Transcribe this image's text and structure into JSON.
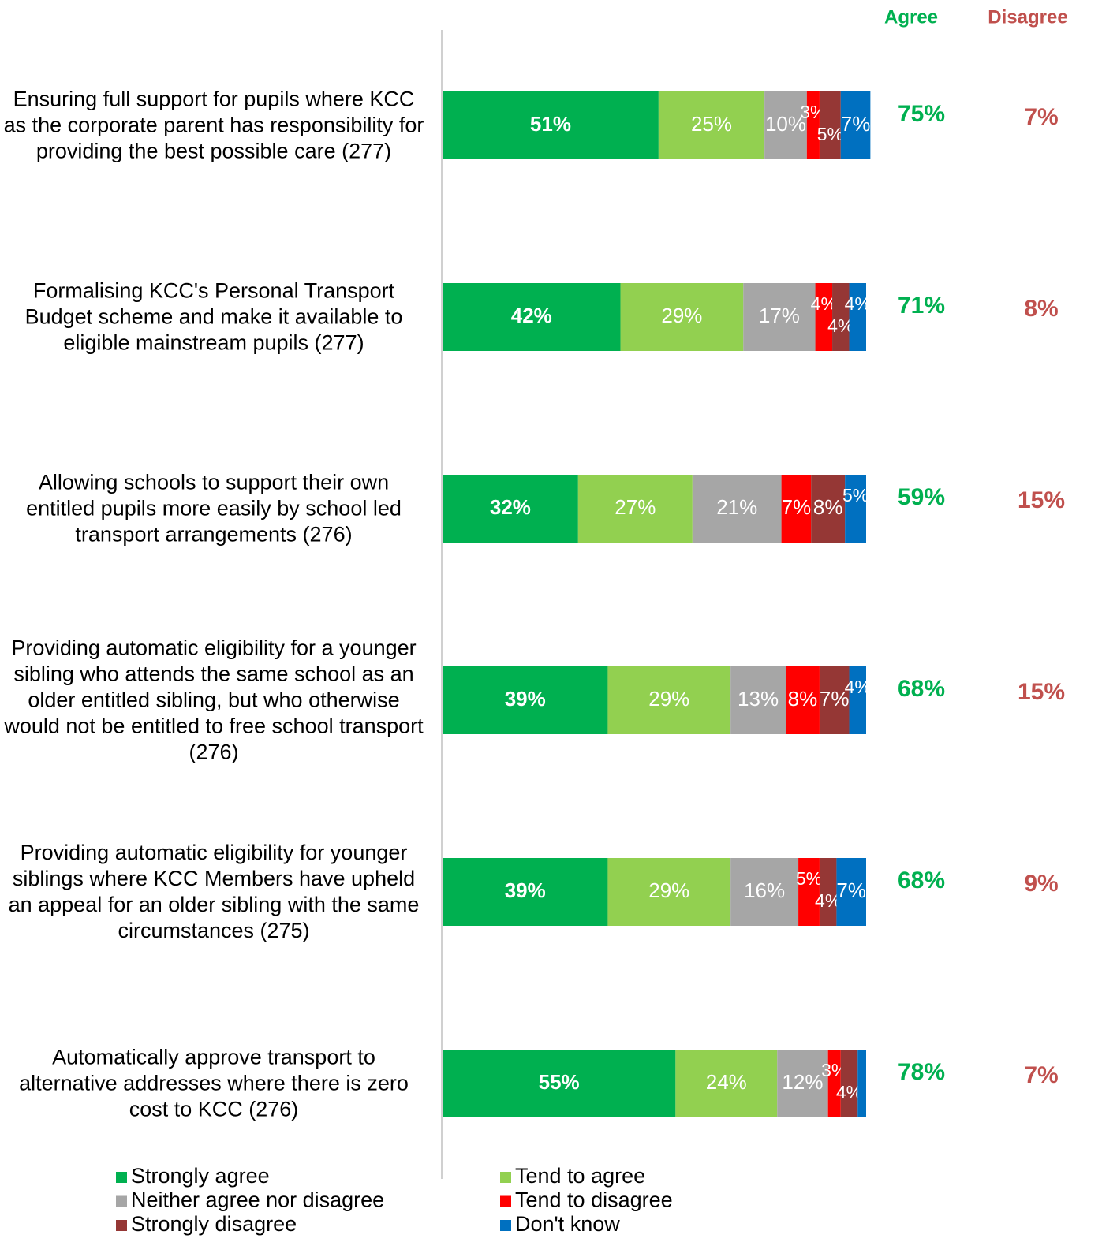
{
  "chart_data": {
    "type": "stacked-bar-horizontal",
    "categories": [
      "Ensuring full support for pupils where KCC as the corporate parent has responsibility for providing the best possible care (277)",
      "Formalising KCC's Personal Transport Budget scheme and make it available to eligible mainstream pupils (277)",
      "Allowing schools to support their own entitled pupils more easily by school led transport arrangements (276)",
      "Providing automatic eligibility for a younger sibling who attends the same school as an older entitled sibling, but who otherwise would not be entitled to free school transport (276)",
      "Providing automatic eligibility for younger siblings where KCC Members have upheld an appeal for an older sibling with the same circumstances (275)",
      "Automatically approve transport to alternative addresses where there is zero cost to KCC (276)"
    ],
    "xlim": [
      0,
      100
    ],
    "series": [
      {
        "name": "Strongly agree",
        "color": "#00b050",
        "values": [
          51,
          42,
          32,
          39,
          39,
          55
        ],
        "value_labels": [
          "51%",
          "42%",
          "32%",
          "39%",
          "39%",
          "55%"
        ]
      },
      {
        "name": "Tend to agree",
        "color": "#92d050",
        "values": [
          25,
          29,
          27,
          29,
          29,
          24
        ],
        "value_labels": [
          "25%",
          "29%",
          "27%",
          "29%",
          "29%",
          "24%"
        ]
      },
      {
        "name": "Neither agree nor disagree",
        "color": "#a6a6a6",
        "values": [
          10,
          17,
          21,
          13,
          16,
          12
        ],
        "value_labels": [
          "10%",
          "17%",
          "21%",
          "13%",
          "16%",
          "12%"
        ]
      },
      {
        "name": "Tend to disagree",
        "color": "#ff0000",
        "values": [
          3,
          4,
          7,
          8,
          5,
          3
        ],
        "value_labels": [
          "3%",
          "4%",
          "7%",
          "8%",
          "5%",
          "3%"
        ]
      },
      {
        "name": "Strongly disagree",
        "color": "#953735",
        "values": [
          5,
          4,
          8,
          7,
          4,
          4
        ],
        "value_labels": [
          "5%",
          "4%",
          "8%",
          "7%",
          "4%",
          "4%"
        ]
      },
      {
        "name": "Don't know",
        "color": "#0070c0",
        "values": [
          7,
          4,
          5,
          4,
          7,
          2
        ],
        "value_labels": [
          "7%",
          "4%",
          "5%",
          "4%",
          "7%",
          null
        ]
      }
    ],
    "agree": {
      "name": "Agree",
      "color": "#00b050",
      "values": [
        75,
        71,
        59,
        68,
        68,
        78
      ],
      "value_labels": [
        "75%",
        "71%",
        "59%",
        "68%",
        "68%",
        "78%"
      ]
    },
    "disagree": {
      "name": "Disagree",
      "color": "#c0504d",
      "values": [
        7,
        8,
        15,
        15,
        9,
        7
      ],
      "value_labels": [
        "7%",
        "8%",
        "15%",
        "15%",
        "9%",
        "7%"
      ]
    }
  }
}
